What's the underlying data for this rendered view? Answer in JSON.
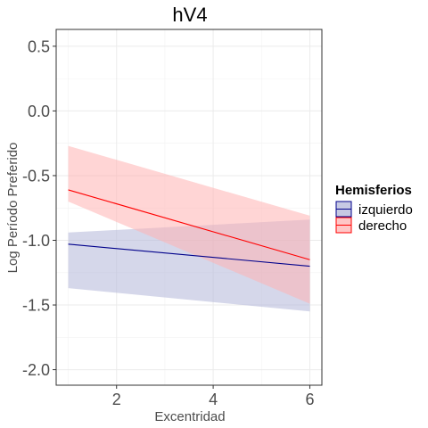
{
  "chart_data": {
    "type": "line",
    "title": "hV4",
    "xlabel": "Excentridad",
    "ylabel": "Log Período Preferido",
    "xlim": [
      0.75,
      6.25
    ],
    "ylim": [
      -2.12,
      0.63
    ],
    "x_ticks": [
      2,
      4,
      6
    ],
    "x_tick_labels": [
      "2",
      "4",
      "6"
    ],
    "y_ticks": [
      0.5,
      0.0,
      -0.5,
      -1.0,
      -1.5,
      -2.0
    ],
    "y_tick_labels": [
      "0.5",
      "0.0",
      "-0.5",
      "-1.0",
      "-1.5",
      "-2.0"
    ],
    "grid": true,
    "legend": {
      "title": "Hemisferios",
      "position": "right"
    },
    "series": [
      {
        "name": "izquierdo",
        "color": "#00008b",
        "fill": "#b3b7d9",
        "x": [
          1,
          6
        ],
        "y": [
          -1.03,
          -1.2
        ],
        "lower": [
          -1.37,
          -1.55
        ],
        "upper": [
          -0.94,
          -0.84
        ]
      },
      {
        "name": "derecho",
        "color": "#ff0000",
        "fill": "#ffb3b3",
        "x": [
          1,
          6
        ],
        "y": [
          -0.61,
          -1.15
        ],
        "lower": [
          -0.7,
          -1.49
        ],
        "upper": [
          -0.27,
          -0.81
        ]
      }
    ]
  }
}
